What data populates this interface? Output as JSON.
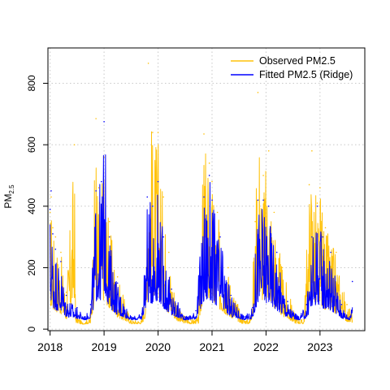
{
  "chart_data": {
    "type": "line",
    "title": "",
    "xlabel": "",
    "ylabel": "PM",
    "ylabel_subscript": "2.5",
    "x_ticks": [
      "2018",
      "2019",
      "2020",
      "2021",
      "2022",
      "2023"
    ],
    "y_ticks": [
      "0",
      "200",
      "400",
      "600",
      "800"
    ],
    "xlim": [
      2017.96,
      2023.83
    ],
    "ylim": [
      -5,
      915
    ],
    "grid": true,
    "legend_position": "top-right",
    "series": [
      {
        "name": "Observed PM2.5",
        "color": "#FFC20A",
        "x": [
          2018.0,
          2018.02,
          2018.05,
          2018.1,
          2018.2,
          2018.3,
          2018.45,
          2018.47,
          2018.6,
          2018.75,
          2018.85,
          2018.9,
          2019.0,
          2019.1,
          2019.25,
          2019.5,
          2019.7,
          2019.78,
          2019.82,
          2019.9,
          2020.0,
          2020.1,
          2020.2,
          2020.4,
          2020.6,
          2020.75,
          2020.85,
          2020.95,
          2021.0,
          2021.1,
          2021.3,
          2021.55,
          2021.7,
          2021.8,
          2021.85,
          2021.95,
          2022.05,
          2022.15,
          2022.3,
          2022.55,
          2022.7,
          2022.8,
          2022.85,
          2022.95,
          2023.0,
          2023.1,
          2023.3,
          2023.5,
          2023.6
        ],
        "values": [
          380,
          430,
          330,
          300,
          250,
          120,
          600,
          60,
          20,
          40,
          685,
          460,
          560,
          350,
          170,
          30,
          30,
          200,
          865,
          640,
          640,
          430,
          250,
          60,
          30,
          40,
          635,
          540,
          480,
          380,
          200,
          40,
          30,
          350,
          770,
          500,
          580,
          380,
          200,
          40,
          30,
          470,
          580,
          410,
          460,
          330,
          250,
          80,
          60
        ]
      },
      {
        "name": "Fitted PM2.5 (Ridge)",
        "color": "#0000FF",
        "x": [
          2018.0,
          2018.02,
          2018.05,
          2018.1,
          2018.2,
          2018.3,
          2018.5,
          2018.65,
          2018.75,
          2018.85,
          2018.95,
          2019.0,
          2019.1,
          2019.25,
          2019.5,
          2019.7,
          2019.8,
          2019.9,
          2020.0,
          2020.1,
          2020.25,
          2020.5,
          2020.7,
          2020.85,
          2020.95,
          2021.0,
          2021.15,
          2021.35,
          2021.6,
          2021.75,
          2021.85,
          2021.95,
          2022.05,
          2022.2,
          2022.4,
          2022.6,
          2022.75,
          2022.85,
          2022.95,
          2023.05,
          2023.2,
          2023.4,
          2023.55,
          2023.6
        ],
        "values": [
          390,
          450,
          310,
          260,
          220,
          110,
          70,
          40,
          80,
          450,
          480,
          675,
          300,
          150,
          40,
          50,
          430,
          400,
          480,
          300,
          130,
          40,
          60,
          430,
          500,
          420,
          300,
          110,
          40,
          70,
          420,
          420,
          400,
          250,
          90,
          40,
          80,
          300,
          400,
          300,
          250,
          80,
          40,
          155
        ]
      }
    ]
  }
}
